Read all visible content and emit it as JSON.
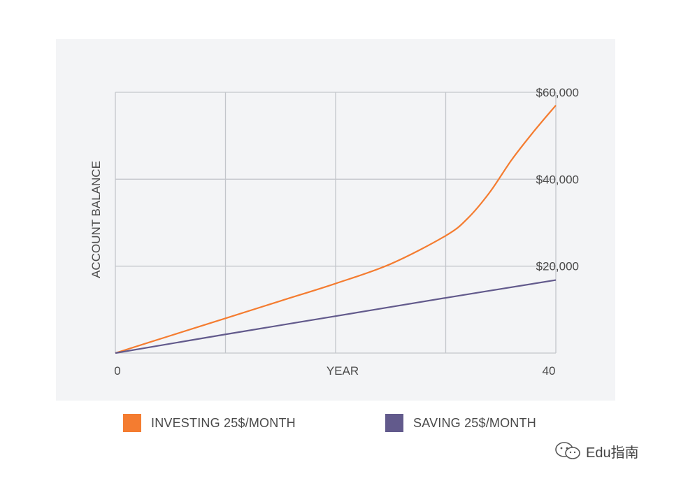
{
  "chart_data": {
    "type": "line",
    "xlabel": "YEAR",
    "ylabel": "ACCOUNT BALANCE",
    "xlim": [
      0,
      40
    ],
    "ylim": [
      0,
      60000
    ],
    "x_tick_labels": [
      {
        "value": 0,
        "label": "0"
      },
      {
        "value": 40,
        "label": "40"
      }
    ],
    "y_tick_labels": [
      {
        "value": 20000,
        "label": "$20,000"
      },
      {
        "value": 40000,
        "label": "$40,000"
      },
      {
        "value": 60000,
        "label": "$60,000"
      }
    ],
    "grid": true,
    "legend_position": "bottom",
    "series": [
      {
        "name": "INVESTING 25$/MONTH",
        "color": "#f47c30",
        "x": [
          0,
          5,
          10,
          15,
          20,
          25,
          30,
          32,
          34,
          36,
          38,
          40
        ],
        "y": [
          0,
          4000,
          8000,
          12000,
          16000,
          20500,
          27000,
          31000,
          37000,
          44500,
          51000,
          57000
        ]
      },
      {
        "name": "SAVING 25$/MONTH",
        "color": "#625a8c",
        "x": [
          0,
          10,
          20,
          30,
          40
        ],
        "y": [
          0,
          4300,
          8500,
          12700,
          16800
        ]
      }
    ]
  },
  "watermark": {
    "text": "Edu指南",
    "icon": "wechat-icon"
  }
}
